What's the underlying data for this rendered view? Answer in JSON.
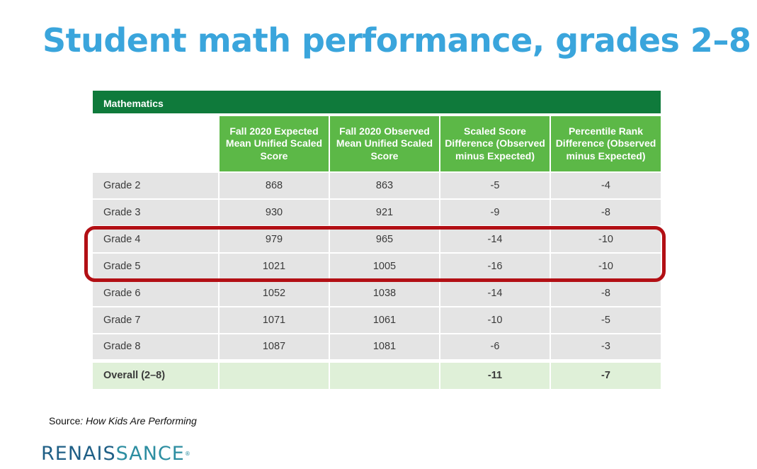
{
  "title": "Student math performance, grades 2–8",
  "table": {
    "section": "Mathematics",
    "headers": [
      "",
      "Fall 2020 Expected Mean Unified Scaled Score",
      "Fall 2020 Observed Mean Unified Scaled Score",
      "Scaled Score Difference (Observed minus Expected)",
      "Percentile Rank Difference (Observed minus Expected)"
    ],
    "rows": [
      [
        "Grade 2",
        "868",
        "863",
        "-5",
        "-4"
      ],
      [
        "Grade 3",
        "930",
        "921",
        "-9",
        "-8"
      ],
      [
        "Grade 4",
        "979",
        "965",
        "-14",
        "-10"
      ],
      [
        "Grade 5",
        "1021",
        "1005",
        "-16",
        "-10"
      ],
      [
        "Grade 6",
        "1052",
        "1038",
        "-14",
        "-8"
      ],
      [
        "Grade 7",
        "1071",
        "1061",
        "-10",
        "-5"
      ],
      [
        "Grade 8",
        "1087",
        "1081",
        "-6",
        "-3"
      ]
    ],
    "overall": [
      "Overall (2–8)",
      "",
      "",
      "-11",
      "-7"
    ],
    "highlighted_rows": [
      "Grade 4",
      "Grade 5"
    ]
  },
  "source": {
    "prefix": "Source",
    "publication": ": How Kids Are Performing"
  },
  "logo": {
    "part1": "RENAIS",
    "part2": "SANCE",
    "mark": "®"
  },
  "colors": {
    "title": "#3aa5dc",
    "section_bar": "#0f7a3b",
    "header": "#5cb847",
    "row": "#e4e4e4",
    "overall_row": "#dff0d8",
    "highlight_border": "#b20f14"
  }
}
